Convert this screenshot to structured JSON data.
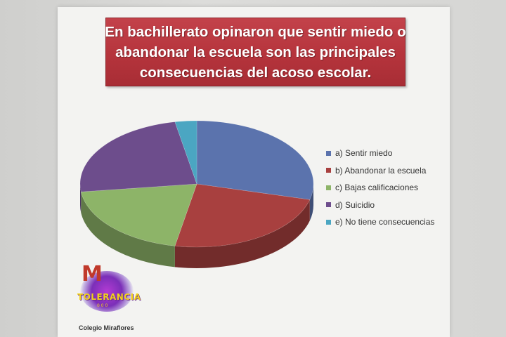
{
  "title_lines": [
    "En bachillerato opinaron que sentir miedo o",
    "abandonar la escuela son las principales",
    "consecuencias del acoso escolar."
  ],
  "chart_data": {
    "type": "pie",
    "title": "En bachillerato opinaron que sentir miedo o abandonar la escuela son las principales consecuencias del acoso escolar.",
    "categories": [
      "a) Sentir miedo",
      "b) Abandonar  la escuela",
      "c) Bajas calificaciones",
      "d) Suicidio",
      "e) No tiene consecuencias"
    ],
    "values": [
      29,
      24,
      20,
      24,
      3
    ],
    "colors": [
      "#5b73ad",
      "#a8403f",
      "#8db468",
      "#6d4d8c",
      "#4ba6c2"
    ],
    "legend_position": "right"
  },
  "logo": {
    "word": "TOLERANCIA",
    "sub": "0 0 0"
  },
  "school": "Colegio Miraflores"
}
